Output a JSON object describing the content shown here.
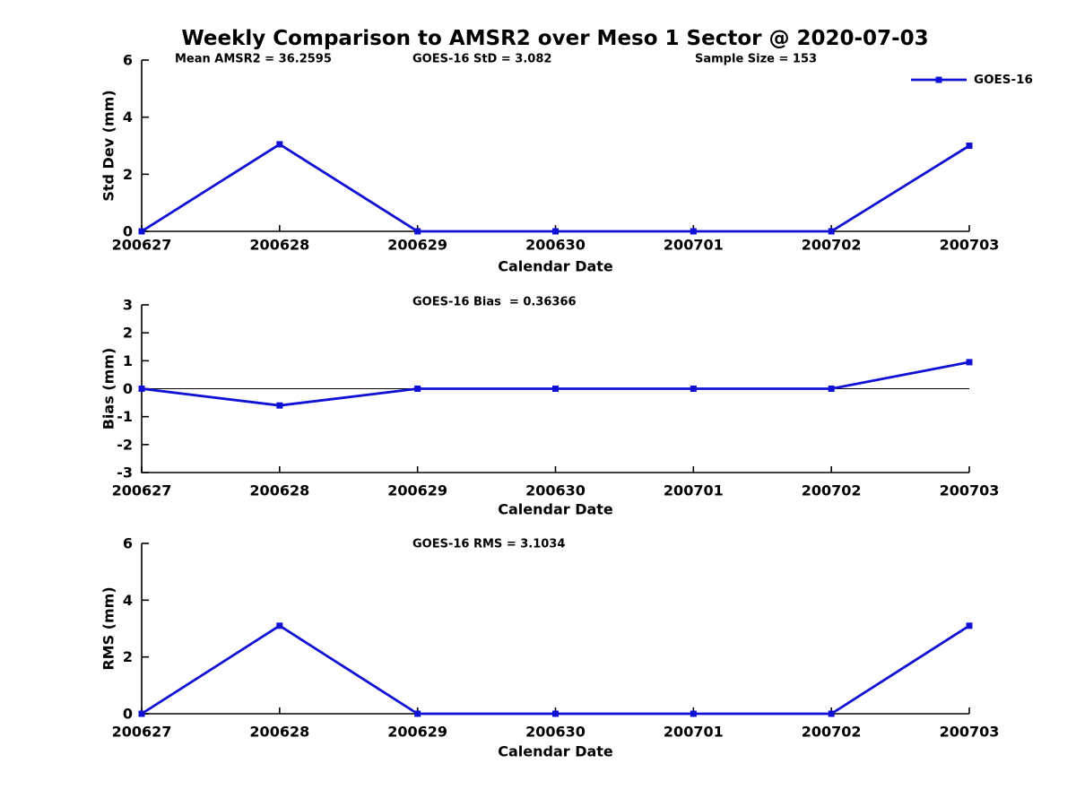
{
  "title": "Weekly Comparison to AMSR2 over Meso 1 Sector @ 2020-07-03",
  "legend": {
    "label": "GOES-16"
  },
  "colors": {
    "series": "#1111d6",
    "axis": "#000000",
    "text": "#000000"
  },
  "chart_data": [
    {
      "type": "line",
      "id": "std-dev",
      "ylabel": "Std Dev (mm)",
      "xlabel": "Calendar Date",
      "categories": [
        "200627",
        "200628",
        "200629",
        "200630",
        "200701",
        "200702",
        "200703"
      ],
      "series": [
        {
          "name": "GOES-16",
          "values": [
            0,
            3.05,
            0,
            0,
            0,
            0,
            3.0
          ]
        }
      ],
      "ylim": [
        0,
        6
      ],
      "yticks": [
        0,
        2,
        4,
        6
      ],
      "grid": false,
      "legend_position": "top-right",
      "annotations": [
        {
          "text": "Mean AMSR2 = 36.2595"
        },
        {
          "text": "GOES-16 StD = 3.082"
        },
        {
          "text": "Sample Size = 153"
        }
      ]
    },
    {
      "type": "line",
      "id": "bias",
      "ylabel": "Bias (mm)",
      "xlabel": "Calendar Date",
      "categories": [
        "200627",
        "200628",
        "200629",
        "200630",
        "200701",
        "200702",
        "200703"
      ],
      "series": [
        {
          "name": "GOES-16",
          "values": [
            0,
            -0.6,
            0,
            0,
            0,
            0,
            0.95
          ]
        }
      ],
      "ylim": [
        -3,
        3
      ],
      "yticks": [
        3,
        2,
        1,
        0,
        -1,
        -2,
        -3
      ],
      "zero_line": true,
      "grid": false,
      "annotations": [
        {
          "text": "GOES-16 Bias  = 0.36366"
        }
      ]
    },
    {
      "type": "line",
      "id": "rms",
      "ylabel": "RMS (mm)",
      "xlabel": "Calendar Date",
      "categories": [
        "200627",
        "200628",
        "200629",
        "200630",
        "200701",
        "200702",
        "200703"
      ],
      "series": [
        {
          "name": "GOES-16",
          "values": [
            0,
            3.1,
            0,
            0,
            0,
            0,
            3.1
          ]
        }
      ],
      "ylim": [
        0,
        6
      ],
      "yticks": [
        0,
        2,
        4,
        6
      ],
      "grid": false,
      "annotations": [
        {
          "text": "GOES-16 RMS = 3.1034"
        }
      ]
    }
  ]
}
